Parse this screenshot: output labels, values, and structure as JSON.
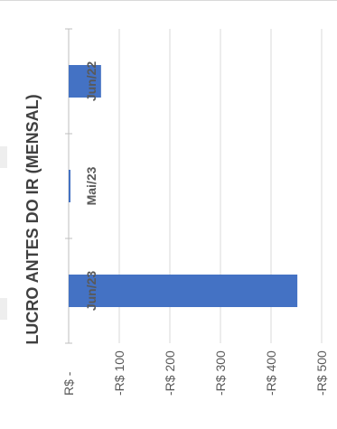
{
  "chart_data": {
    "type": "bar",
    "orientation": "horizontal",
    "title": "LUCRO ANTES DO IR (MENSAL)",
    "categories": [
      "Jun/23",
      "Mai/23",
      "Jun/22"
    ],
    "values": [
      -452,
      -3,
      -64
    ],
    "value_axis": {
      "min": -500,
      "max": 0,
      "ticks": [
        0,
        -100,
        -200,
        -300,
        -400,
        -500
      ],
      "tick_labels": [
        "R$ -",
        "-R$ 100",
        "-R$ 200",
        "-R$ 300",
        "-R$ 400",
        "-R$ 500"
      ]
    },
    "bar_color": "#4472C4",
    "gridlines": true,
    "legend": "none"
  }
}
